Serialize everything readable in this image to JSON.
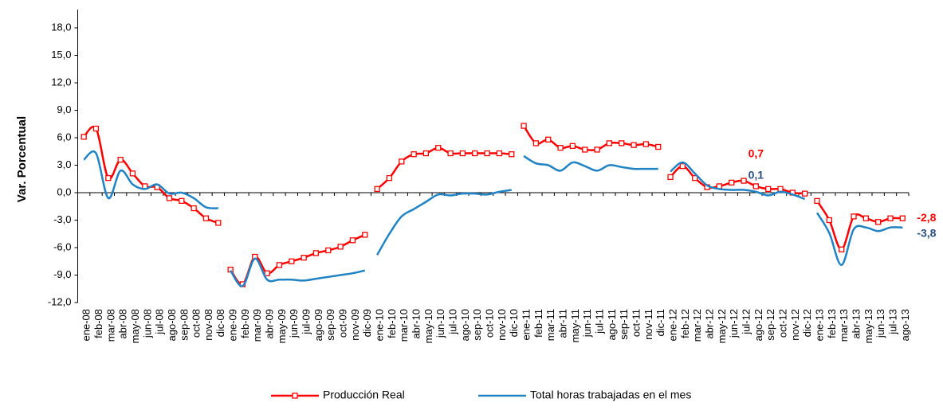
{
  "chart_data": {
    "type": "line",
    "y_label": "Var. Porcentual",
    "categories": [
      "ene-08",
      "feb-08",
      "mar-08",
      "abr-08",
      "may-08",
      "jun-08",
      "jul-08",
      "ago-08",
      "sep-08",
      "oct-08",
      "nov-08",
      "dic-08",
      "ene-09",
      "feb-09",
      "mar-09",
      "abr-09",
      "may-09",
      "jun-09",
      "jul-09",
      "ago-09",
      "sep-09",
      "oct-09",
      "nov-09",
      "dic-09",
      "ene-10",
      "feb-10",
      "mar-10",
      "abr-10",
      "may-10",
      "jun-10",
      "jul-10",
      "ago-10",
      "sep-10",
      "oct-10",
      "nov-10",
      "dic-10",
      "ene-11",
      "feb-11",
      "mar-11",
      "abr-11",
      "may-11",
      "jun-11",
      "jul-11",
      "ago-11",
      "sep-11",
      "oct-11",
      "nov-11",
      "dic-11",
      "ene-12",
      "feb-12",
      "mar-12",
      "abr-12",
      "may-12",
      "jun-12",
      "jul-12",
      "ago-12",
      "sep-12",
      "oct-12",
      "nov-12",
      "dic-12",
      "ene-13",
      "feb-13",
      "mar-13",
      "abr-13",
      "may-13",
      "jun-13",
      "jul-13",
      "ago-13"
    ],
    "series": [
      {
        "name": "Producción Real",
        "color": "#ff0000",
        "marker": "square",
        "values": [
          6.1,
          7.0,
          1.6,
          3.6,
          2.1,
          0.7,
          0.6,
          -0.6,
          -0.9,
          -1.7,
          -2.8,
          -3.3,
          -8.4,
          -10.0,
          -7.0,
          -8.8,
          -7.9,
          -7.5,
          -7.1,
          -6.6,
          -6.3,
          -5.9,
          -5.2,
          -4.6,
          0.4,
          1.6,
          3.4,
          4.2,
          4.3,
          4.9,
          4.3,
          4.3,
          4.3,
          4.3,
          4.3,
          4.2,
          7.3,
          5.4,
          5.8,
          4.9,
          5.1,
          4.7,
          4.7,
          5.4,
          5.4,
          5.2,
          5.3,
          5.0,
          1.7,
          2.9,
          1.6,
          0.6,
          0.7,
          1.1,
          1.3,
          0.7,
          0.4,
          0.4,
          0.0,
          -0.1,
          -0.9,
          -3.0,
          -6.2,
          -2.6,
          -2.8,
          -3.2,
          -2.8,
          -2.8
        ],
        "value_labels": [
          null,
          null,
          null,
          null,
          null,
          null,
          null,
          null,
          null,
          null,
          null,
          null,
          null,
          null,
          null,
          null,
          null,
          null,
          null,
          null,
          null,
          null,
          null,
          null,
          null,
          null,
          null,
          null,
          null,
          null,
          null,
          null,
          null,
          null,
          null,
          null,
          null,
          null,
          null,
          null,
          null,
          null,
          null,
          null,
          null,
          null,
          null,
          null,
          null,
          null,
          null,
          null,
          null,
          null,
          null,
          "0,7",
          null,
          null,
          null,
          null,
          null,
          null,
          null,
          null,
          null,
          null,
          null,
          "-2,8"
        ]
      },
      {
        "name": "Total horas trabajadas en el mes",
        "color": "#1f83c4",
        "values": [
          3.6,
          4.3,
          -0.6,
          2.4,
          0.9,
          0.4,
          0.9,
          -0.1,
          0.0,
          -0.6,
          -1.6,
          -1.7,
          -8.5,
          -10.2,
          -7.2,
          -9.5,
          -9.5,
          -9.5,
          -9.6,
          -9.4,
          -9.2,
          -9.0,
          -8.8,
          -8.5,
          -6.8,
          -4.5,
          -2.6,
          -1.8,
          -1.0,
          -0.2,
          -0.3,
          -0.1,
          -0.1,
          -0.2,
          0.1,
          0.3,
          4.0,
          3.2,
          3.0,
          2.4,
          3.3,
          2.9,
          2.4,
          3.0,
          2.8,
          2.6,
          2.6,
          2.6,
          2.3,
          3.3,
          2.1,
          0.8,
          0.4,
          0.3,
          0.3,
          0.1,
          -0.3,
          0.1,
          -0.2,
          -0.7,
          -2.2,
          -4.4,
          -7.9,
          -4.0,
          -3.8,
          -4.2,
          -3.8,
          -3.8
        ],
        "value_labels": [
          null,
          null,
          null,
          null,
          null,
          null,
          null,
          null,
          null,
          null,
          null,
          null,
          null,
          null,
          null,
          null,
          null,
          null,
          null,
          null,
          null,
          null,
          null,
          null,
          null,
          null,
          null,
          null,
          null,
          null,
          null,
          null,
          null,
          null,
          null,
          null,
          null,
          null,
          null,
          null,
          null,
          null,
          null,
          null,
          null,
          null,
          null,
          null,
          null,
          null,
          null,
          null,
          null,
          null,
          null,
          "0,1",
          null,
          null,
          null,
          null,
          null,
          null,
          null,
          null,
          null,
          null,
          null,
          "-3,8"
        ],
        "label_color": "#2b4f82"
      }
    ],
    "ylim": [
      -12,
      20
    ],
    "yticks": [
      {
        "value": -12,
        "label": "-12,0"
      },
      {
        "value": -9,
        "label": "-9,0"
      },
      {
        "value": -6,
        "label": "-6,0"
      },
      {
        "value": -3,
        "label": "-3,0"
      },
      {
        "value": 0,
        "label": "0,0"
      },
      {
        "value": 3,
        "label": "3,0"
      },
      {
        "value": 6,
        "label": "6,0"
      },
      {
        "value": 9,
        "label": "9,0"
      },
      {
        "value": 12,
        "label": "12,0"
      },
      {
        "value": 15,
        "label": "15,0"
      },
      {
        "value": 18,
        "label": "18,0"
      }
    ],
    "legend": "bottom"
  }
}
